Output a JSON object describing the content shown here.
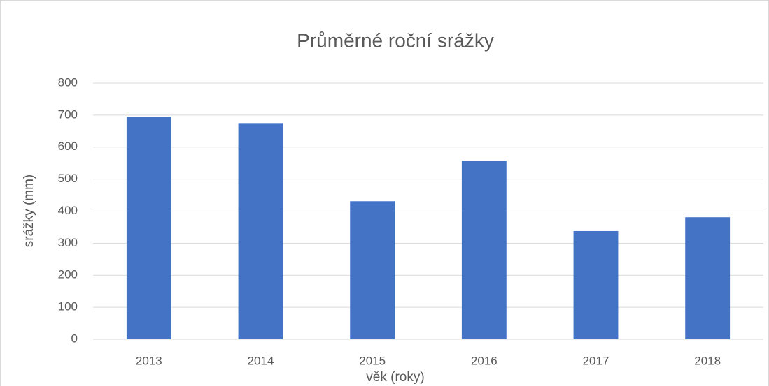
{
  "chart_data": {
    "type": "bar",
    "title": "Průměrné roční srážky",
    "x_label": "věk (roky)",
    "y_label": "srážky (mm)",
    "categories": [
      "2013",
      "2014",
      "2015",
      "2016",
      "2017",
      "2018"
    ],
    "values": [
      695,
      675,
      431,
      558,
      338,
      381
    ],
    "color": "#4472c4",
    "ylim": [
      0,
      800
    ],
    "yticks": [
      0,
      100,
      200,
      300,
      400,
      500,
      600,
      700,
      800
    ],
    "grid": true
  }
}
